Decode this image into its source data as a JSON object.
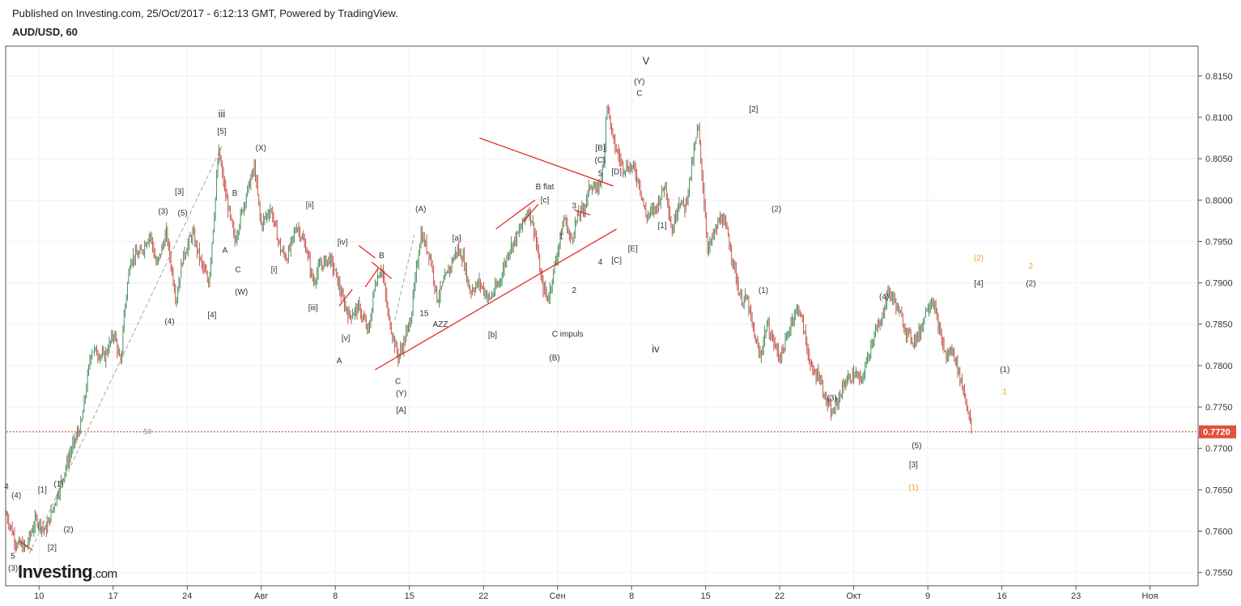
{
  "header": {
    "published": "Published on Investing.com, 25/Oct/2017 - 6:12:13 GMT, Powered by TradingView.",
    "symbol": "AUD/USD, 60"
  },
  "logo": {
    "name": "Investing",
    "suffix": ".com"
  },
  "colors": {
    "up": "#4b8f5f",
    "down": "#c8534a",
    "grid": "#eef0f3",
    "trendline": "#e02020",
    "dashed": "#a6a6a6",
    "orange": "#f2a31c",
    "price_tag": "#e0523b"
  },
  "chart_data": {
    "type": "candlestick",
    "ylim": [
      0.7535,
      0.8185
    ],
    "y_ticks": [
      "0.8150",
      "0.8100",
      "0.8050",
      "0.8000",
      "0.7950",
      "0.7900",
      "0.7850",
      "0.7800",
      "0.7750",
      "0.7700",
      "0.7650",
      "0.7600",
      "0.7550"
    ],
    "x_ticks": [
      "10",
      "17",
      "24",
      "Авг",
      "8",
      "15",
      "22",
      "Сен",
      "8",
      "15",
      "22",
      "Окт",
      "9",
      "16",
      "23",
      "Ноя"
    ],
    "last_price": "0.7720",
    "horizontal_level_label": "50",
    "price_path": [
      [
        0,
        0.762
      ],
      [
        3,
        0.7585
      ],
      [
        6,
        0.758
      ],
      [
        9,
        0.7615
      ],
      [
        12,
        0.76
      ],
      [
        16,
        0.765
      ],
      [
        20,
        0.77
      ],
      [
        23,
        0.773
      ],
      [
        26,
        0.782
      ],
      [
        30,
        0.781
      ],
      [
        33,
        0.784
      ],
      [
        35,
        0.78
      ],
      [
        36,
        0.786
      ],
      [
        38,
        0.793
      ],
      [
        41,
        0.7935
      ],
      [
        44,
        0.796
      ],
      [
        46,
        0.792
      ],
      [
        49,
        0.796
      ],
      [
        52,
        0.788
      ],
      [
        54,
        0.793
      ],
      [
        57,
        0.796
      ],
      [
        60,
        0.792
      ],
      [
        62,
        0.79
      ],
      [
        64,
        0.8
      ],
      [
        65,
        0.806
      ],
      [
        67,
        0.801
      ],
      [
        70,
        0.795
      ],
      [
        73,
        0.8
      ],
      [
        76,
        0.804
      ],
      [
        78,
        0.797
      ],
      [
        81,
        0.799
      ],
      [
        84,
        0.794
      ],
      [
        86,
        0.793
      ],
      [
        89,
        0.797
      ],
      [
        92,
        0.794
      ],
      [
        94,
        0.79
      ],
      [
        96,
        0.792
      ],
      [
        99,
        0.793
      ],
      [
        101,
        0.791
      ],
      [
        103,
        0.788
      ],
      [
        105,
        0.786
      ],
      [
        108,
        0.787
      ],
      [
        111,
        0.784
      ],
      [
        113,
        0.79
      ],
      [
        115,
        0.792
      ],
      [
        117,
        0.786
      ],
      [
        120,
        0.781
      ],
      [
        122,
        0.783
      ],
      [
        124,
        0.786
      ],
      [
        127,
        0.796
      ],
      [
        130,
        0.793
      ],
      [
        132,
        0.788
      ],
      [
        135,
        0.791
      ],
      [
        138,
        0.794
      ],
      [
        140,
        0.793
      ],
      [
        142,
        0.789
      ],
      [
        145,
        0.79
      ],
      [
        148,
        0.788
      ],
      [
        151,
        0.79
      ],
      [
        154,
        0.794
      ],
      [
        157,
        0.796
      ],
      [
        160,
        0.799
      ],
      [
        162,
        0.796
      ],
      [
        164,
        0.79
      ],
      [
        166,
        0.788
      ],
      [
        168,
        0.792
      ],
      [
        171,
        0.798
      ],
      [
        173,
        0.795
      ],
      [
        175,
        0.798
      ],
      [
        177,
        0.799
      ],
      [
        179,
        0.802
      ],
      [
        181,
        0.801
      ],
      [
        183,
        0.804
      ],
      [
        184,
        0.812
      ],
      [
        186,
        0.807
      ],
      [
        189,
        0.804
      ],
      [
        192,
        0.804
      ],
      [
        194,
        0.802
      ],
      [
        196,
        0.798
      ],
      [
        199,
        0.799
      ],
      [
        202,
        0.802
      ],
      [
        204,
        0.796
      ],
      [
        206,
        0.8
      ],
      [
        208,
        0.799
      ],
      [
        210,
        0.804
      ],
      [
        212,
        0.809
      ],
      [
        213,
        0.804
      ],
      [
        215,
        0.794
      ],
      [
        217,
        0.796
      ],
      [
        219,
        0.798
      ],
      [
        221,
        0.796
      ],
      [
        223,
        0.792
      ],
      [
        225,
        0.788
      ],
      [
        227,
        0.788
      ],
      [
        229,
        0.784
      ],
      [
        231,
        0.781
      ],
      [
        233,
        0.785
      ],
      [
        235,
        0.783
      ],
      [
        237,
        0.781
      ],
      [
        239,
        0.783
      ],
      [
        241,
        0.786
      ],
      [
        243,
        0.787
      ],
      [
        245,
        0.783
      ],
      [
        247,
        0.779
      ],
      [
        249,
        0.779
      ],
      [
        251,
        0.776
      ],
      [
        253,
        0.774
      ],
      [
        255,
        0.776
      ],
      [
        257,
        0.778
      ],
      [
        260,
        0.779
      ],
      [
        262,
        0.778
      ],
      [
        264,
        0.781
      ],
      [
        266,
        0.784
      ],
      [
        268,
        0.785
      ],
      [
        270,
        0.789
      ],
      [
        272,
        0.788
      ],
      [
        274,
        0.786
      ],
      [
        276,
        0.784
      ],
      [
        278,
        0.783
      ],
      [
        280,
        0.784
      ],
      [
        282,
        0.787
      ],
      [
        284,
        0.788
      ],
      [
        286,
        0.784
      ],
      [
        288,
        0.781
      ],
      [
        290,
        0.782
      ],
      [
        292,
        0.779
      ],
      [
        294,
        0.776
      ],
      [
        296,
        0.772
      ]
    ],
    "trendlines": [
      [
        [
          112,
          0.7925
        ],
        [
          118,
          0.7905
        ]
      ],
      [
        [
          108,
          0.7945
        ],
        [
          113,
          0.793
        ]
      ],
      [
        [
          102,
          0.7872
        ],
        [
          106,
          0.7892
        ]
      ],
      [
        [
          110,
          0.7895
        ],
        [
          114,
          0.7918
        ]
      ],
      [
        [
          113,
          0.7795
        ],
        [
          187,
          0.7965
        ]
      ],
      [
        [
          145,
          0.8075
        ],
        [
          186,
          0.8017
        ]
      ],
      [
        [
          150,
          0.7965
        ],
        [
          162,
          0.8
        ]
      ],
      [
        [
          158,
          0.7972
        ],
        [
          163,
          0.7995
        ]
      ],
      [
        [
          174,
          0.7988
        ],
        [
          179,
          0.7982
        ]
      ],
      [
        [
          4,
          0.7588
        ],
        [
          8,
          0.7577
        ]
      ]
    ],
    "dashed_lines": [
      [
        [
          7,
          0.7573
        ],
        [
          66,
          0.8065
        ]
      ],
      [
        [
          119,
          0.7855
        ],
        [
          125,
          0.7958
        ]
      ]
    ],
    "wave_labels": [
      {
        "text": "iii",
        "at": [
          66,
          0.81
        ],
        "big": true
      },
      {
        "text": "[5]",
        "at": [
          66,
          0.808
        ]
      },
      {
        "text": "(X)",
        "at": [
          78,
          0.806
        ]
      },
      {
        "text": "B",
        "at": [
          70,
          0.8005
        ]
      },
      {
        "text": "[3]",
        "at": [
          53,
          0.8007
        ]
      },
      {
        "text": "(3)",
        "at": [
          48,
          0.7983
        ]
      },
      {
        "text": "(5)",
        "at": [
          54,
          0.7981
        ]
      },
      {
        "text": "[ii]",
        "at": [
          93,
          0.7991
        ]
      },
      {
        "text": "[iv]",
        "at": [
          103,
          0.7946
        ]
      },
      {
        "text": "A",
        "at": [
          67,
          0.7936
        ]
      },
      {
        "text": "C",
        "at": [
          71,
          0.7913
        ]
      },
      {
        "text": "[i]",
        "at": [
          82,
          0.7913
        ]
      },
      {
        "text": "(W)",
        "at": [
          72,
          0.7886
        ]
      },
      {
        "text": "(4)",
        "at": [
          50,
          0.785
        ]
      },
      {
        "text": "[4]",
        "at": [
          63,
          0.7858
        ]
      },
      {
        "text": "[iii]",
        "at": [
          94,
          0.7867
        ]
      },
      {
        "text": "[v]",
        "at": [
          104,
          0.783
        ]
      },
      {
        "text": "A",
        "at": [
          102,
          0.7803
        ]
      },
      {
        "text": "B",
        "at": [
          115,
          0.793
        ]
      },
      {
        "text": "C",
        "at": [
          120,
          0.7778
        ]
      },
      {
        "text": "(Y)",
        "at": [
          121,
          0.7763
        ]
      },
      {
        "text": "[A]",
        "at": [
          121,
          0.7743
        ]
      },
      {
        "text": "15",
        "at": [
          128,
          0.786
        ]
      },
      {
        "text": "AZZ",
        "at": [
          133,
          0.7847
        ]
      },
      {
        "text": "(A)",
        "at": [
          127,
          0.7986
        ]
      },
      {
        "text": "[a]",
        "at": [
          138,
          0.7951
        ]
      },
      {
        "text": "[b]",
        "at": [
          149,
          0.7834
        ]
      },
      {
        "text": "B flat",
        "at": [
          165,
          0.8013
        ]
      },
      {
        "text": "[c]",
        "at": [
          165,
          0.7997
        ]
      },
      {
        "text": "C impuls",
        "at": [
          172,
          0.7835
        ]
      },
      {
        "text": "(B)",
        "at": [
          168,
          0.7806
        ]
      },
      {
        "text": "1",
        "at": [
          170,
          0.7953
        ]
      },
      {
        "text": "2",
        "at": [
          174,
          0.7888
        ]
      },
      {
        "text": "3",
        "at": [
          174,
          0.799
        ]
      },
      {
        "text": "4",
        "at": [
          182,
          0.7922
        ]
      },
      {
        "text": "5",
        "at": [
          182,
          0.8029
        ]
      },
      {
        "text": "[B]",
        "at": [
          182,
          0.806
        ]
      },
      {
        "text": "(C)",
        "at": [
          182,
          0.8045
        ]
      },
      {
        "text": "[D]",
        "at": [
          187,
          0.8031
        ]
      },
      {
        "text": "[C]",
        "at": [
          187,
          0.7924
        ]
      },
      {
        "text": "[E]",
        "at": [
          192,
          0.7938
        ]
      },
      {
        "text": "V",
        "at": [
          196,
          0.8164
        ],
        "big": true
      },
      {
        "text": "(Y)",
        "at": [
          194,
          0.814
        ]
      },
      {
        "text": "C",
        "at": [
          194,
          0.8126
        ]
      },
      {
        "text": "[1]",
        "at": [
          201,
          0.7966
        ]
      },
      {
        "text": "iv",
        "at": [
          199,
          0.7816
        ],
        "big": true
      },
      {
        "text": "[2]",
        "at": [
          229,
          0.8107
        ]
      },
      {
        "text": "(2)",
        "at": [
          236,
          0.7986
        ]
      },
      {
        "text": "(1)",
        "at": [
          232,
          0.7888
        ]
      },
      {
        "text": "(3)",
        "at": [
          253,
          0.7758
        ]
      },
      {
        "text": "(4)",
        "at": [
          269,
          0.788
        ]
      },
      {
        "text": "(5)",
        "at": [
          279,
          0.77
        ]
      },
      {
        "text": "[3]",
        "at": [
          278,
          0.7677
        ]
      },
      {
        "text": "(1)",
        "at": [
          278,
          0.765
        ],
        "orange": true
      },
      {
        "text": "(2)",
        "at": [
          298,
          0.7927
        ],
        "orange": true
      },
      {
        "text": "[4]",
        "at": [
          298,
          0.7896
        ]
      },
      {
        "text": "(1)",
        "at": [
          306,
          0.7792
        ]
      },
      {
        "text": "1",
        "at": [
          306,
          0.7765
        ],
        "orange": true
      },
      {
        "text": "2",
        "at": [
          314,
          0.7917
        ],
        "orange": true
      },
      {
        "text": "(2)",
        "at": [
          314,
          0.7896
        ]
      },
      {
        "text": "4",
        "at": [
          0,
          0.7651
        ]
      },
      {
        "text": "(4)",
        "at": [
          3,
          0.764
        ]
      },
      {
        "text": "[1]",
        "at": [
          11,
          0.7647
        ]
      },
      {
        "text": "(1)",
        "at": [
          16,
          0.7654
        ]
      },
      {
        "text": "(2)",
        "at": [
          19,
          0.7599
        ]
      },
      {
        "text": "[2]",
        "at": [
          14,
          0.7577
        ]
      },
      {
        "text": "5",
        "at": [
          2,
          0.7567
        ]
      },
      {
        "text": "(3)",
        "at": [
          2,
          0.7552
        ]
      }
    ]
  }
}
